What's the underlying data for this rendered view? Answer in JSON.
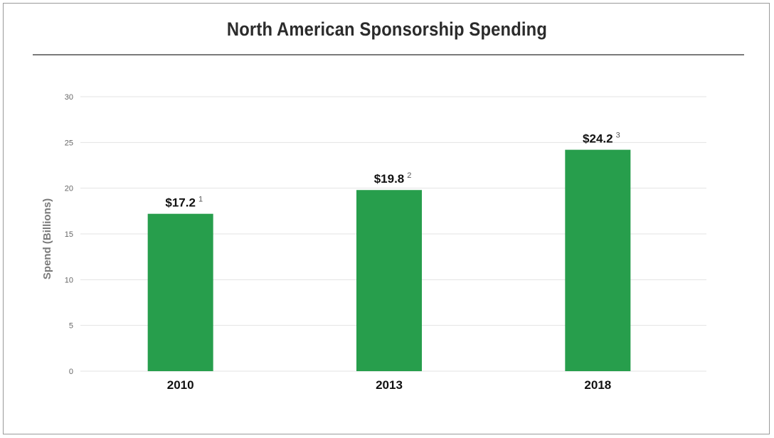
{
  "chart_data": {
    "type": "bar",
    "title": "North American Sponsorship Spending",
    "ylabel": "Spend (Billions)",
    "xlabel": "",
    "categories": [
      "2010",
      "2013",
      "2018"
    ],
    "values": [
      17.2,
      19.8,
      24.2
    ],
    "value_labels": [
      "$17.2",
      "$19.8",
      "$24.2"
    ],
    "footnotes": [
      "1",
      "2",
      "3"
    ],
    "ylim": [
      0,
      30
    ],
    "yticks": [
      "0",
      "5",
      "10",
      "15",
      "20",
      "25",
      "30"
    ],
    "grid": true,
    "bar_color": "#279e4c",
    "grid_color": "#e3e3e3"
  }
}
